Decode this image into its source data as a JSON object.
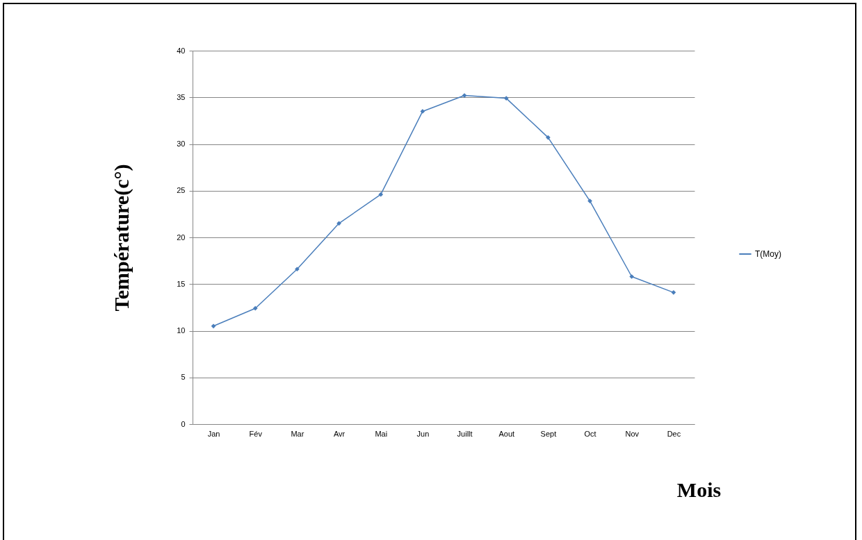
{
  "chart_data": {
    "type": "line",
    "xlabel": "Mois",
    "ylabel": "Température(c°)",
    "categories": [
      "Jan",
      "Fév",
      "Mar",
      "Avr",
      "Mai",
      "Jun",
      "Juillt",
      "Aout",
      "Sept",
      "Oct",
      "Nov",
      "Dec"
    ],
    "series": [
      {
        "name": "T(Moy)",
        "color": "#4a7ebb",
        "values": [
          10.5,
          12.4,
          16.6,
          21.5,
          24.6,
          33.5,
          35.2,
          34.9,
          30.7,
          23.9,
          15.8,
          14.1
        ]
      }
    ],
    "ylim": [
      0,
      40
    ],
    "yticks": [
      0,
      5,
      10,
      15,
      20,
      25,
      30,
      35,
      40
    ],
    "grid": "y",
    "legend": "right",
    "marker": "diamond",
    "line_style": "solid"
  }
}
